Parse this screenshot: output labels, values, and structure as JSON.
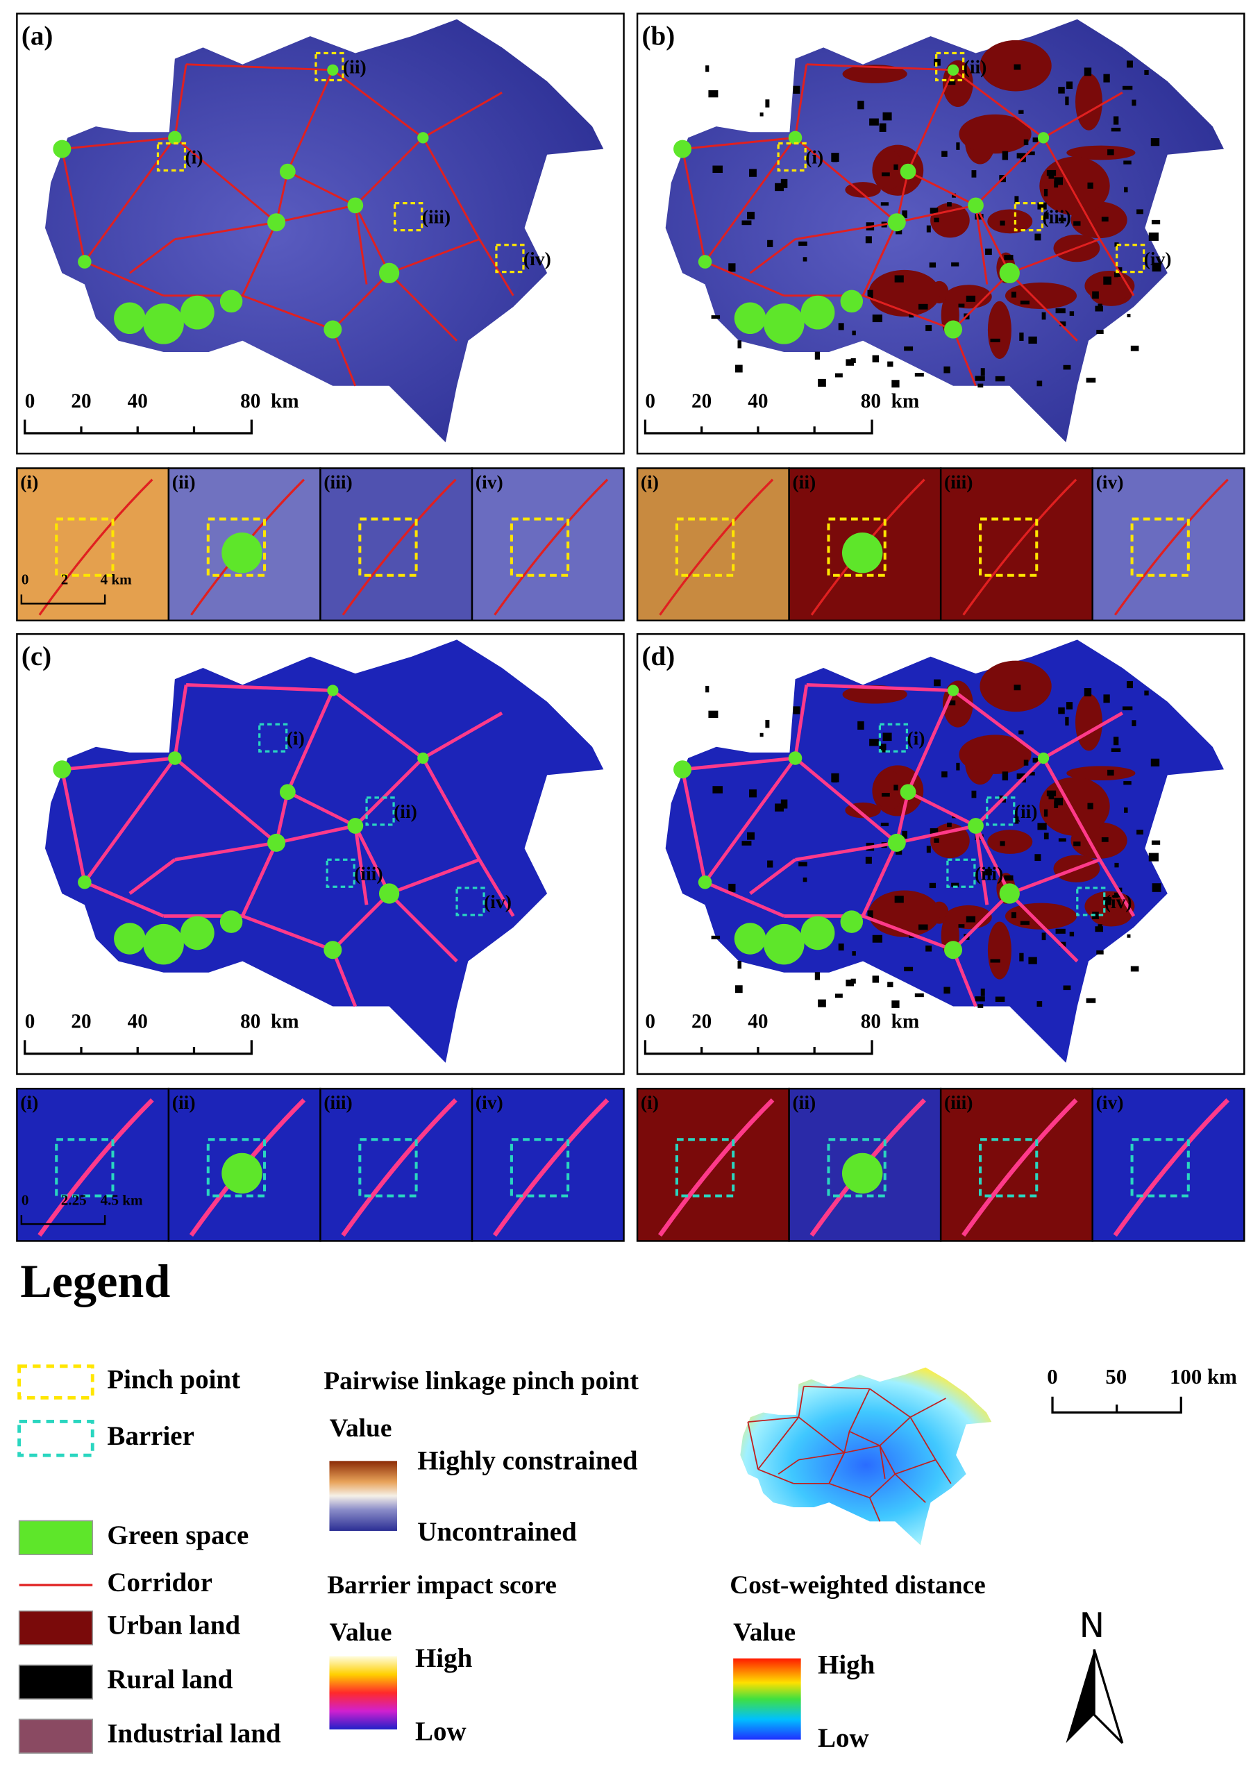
{
  "panels": [
    {
      "label": "(a)",
      "scale_bar": {
        "ticks": [
          "0",
          "20",
          "40",
          "80"
        ],
        "unit": "km"
      },
      "markers": [
        "(i)",
        "(ii)",
        "(iii)",
        "(iv)"
      ]
    },
    {
      "label": "(b)",
      "scale_bar": {
        "ticks": [
          "0",
          "20",
          "40",
          "80"
        ],
        "unit": "km"
      },
      "markers": [
        "(i)",
        "(ii)",
        "(iii)",
        "(iv)"
      ]
    },
    {
      "label": "(c)",
      "scale_bar": {
        "ticks": [
          "0",
          "20",
          "40",
          "80"
        ],
        "unit": "km"
      },
      "markers": [
        "(i)",
        "(ii)",
        "(iii)",
        "(iv)"
      ]
    },
    {
      "label": "(d)",
      "scale_bar": {
        "ticks": [
          "0",
          "20",
          "40",
          "80"
        ],
        "unit": "km"
      },
      "markers": [
        "(i)",
        "(ii)",
        "(iii)",
        "(iv)"
      ]
    }
  ],
  "inset_rows": [
    {
      "labels": [
        "(i)",
        "(ii)",
        "(iii)",
        "(iv)"
      ],
      "scale_bar": [
        "0",
        "2",
        "4 km"
      ]
    },
    {
      "labels": [
        "(i)",
        "(ii)",
        "(iii)",
        "(iv)"
      ]
    },
    {
      "labels": [
        "(i)",
        "(ii)",
        "(iii)",
        "(iv)"
      ],
      "scale_bar": [
        "0",
        "2.25",
        "4.5 km"
      ]
    },
    {
      "labels": [
        "(i)",
        "(ii)",
        "(iii)",
        "(iv)"
      ]
    }
  ],
  "legend": {
    "title": "Legend",
    "symbols": [
      "Pinch point",
      "Barrier",
      "Green space",
      "Corridor",
      "Urban land",
      "Rural land",
      "Industrial land"
    ],
    "pinch_point": {
      "title": "Pairwise linkage pinch point",
      "value": "Value",
      "high": "Highly constrained",
      "low": "Uncontrained"
    },
    "barrier_impact": {
      "title": "Barrier impact score",
      "value": "Value",
      "high": "High",
      "low": "Low"
    },
    "cost_distance": {
      "title": "Cost-weighted distance",
      "value": "Value",
      "high": "High",
      "low": "Low"
    },
    "scale_bar": {
      "ticks": [
        "0",
        "50",
        "100 km"
      ]
    },
    "north": "N"
  }
}
